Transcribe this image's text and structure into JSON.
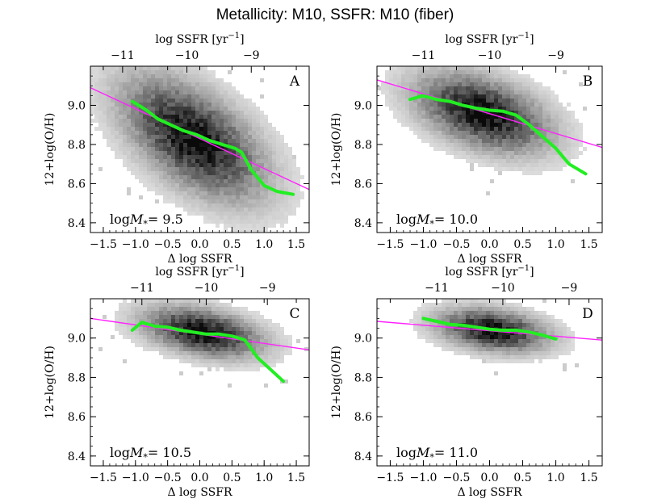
{
  "title": "Metallicity: M10,   SSFR: M10 (fiber)",
  "chart_data": [
    {
      "type": "heatmap",
      "panel": "A",
      "mass_label_prefix": "logM",
      "mass_label_sub": "*",
      "mass_label_value": "= 9.5",
      "xlabel": "Δ log SSFR",
      "ylabel": "12+log(O/H)",
      "top_xlabel": "log SSFR [yr",
      "top_xlabel_sup": "−1",
      "top_xlabel_end": "]",
      "xlim": [
        -1.7,
        1.7
      ],
      "ylim": [
        8.35,
        9.2
      ],
      "xticks": [
        -1.5,
        -1.0,
        -0.5,
        0.0,
        0.5,
        1.0,
        1.5
      ],
      "xtick_labels": [
        "−1.5",
        "−1.0",
        "−0.5",
        "0.0",
        "0.5",
        "1.0",
        "1.5"
      ],
      "yticks": [
        8.4,
        8.6,
        8.8,
        9.0
      ],
      "ytick_labels": [
        "8.4",
        "8.6",
        "8.8",
        "9.0"
      ],
      "top_ticks_delta": [
        -1.2,
        -0.2,
        0.8
      ],
      "top_tick_labels": [
        "−11",
        "−10",
        "−9"
      ],
      "density": {
        "cx": -0.1,
        "cy": 8.83,
        "sx": 0.6,
        "sy": 0.17,
        "rho": -0.55
      },
      "fit_line": {
        "x": [
          -1.7,
          1.7
        ],
        "y": [
          9.09,
          8.57
        ]
      },
      "median_line": {
        "x": [
          -1.05,
          -0.85,
          -0.65,
          -0.45,
          -0.25,
          -0.05,
          0.15,
          0.35,
          0.55,
          0.65,
          0.8,
          1.0,
          1.2,
          1.45
        ],
        "y": [
          9.02,
          8.98,
          8.93,
          8.9,
          8.87,
          8.85,
          8.82,
          8.8,
          8.78,
          8.76,
          8.67,
          8.59,
          8.56,
          8.545
        ]
      }
    },
    {
      "type": "heatmap",
      "panel": "B",
      "mass_label_prefix": "logM",
      "mass_label_sub": "*",
      "mass_label_value": "= 10.0",
      "xlabel": "Δ log SSFR",
      "ylabel": "12+log(O/H)",
      "top_xlabel": "log SSFR [yr",
      "top_xlabel_sup": "−1",
      "top_xlabel_end": "]",
      "xlim": [
        -1.7,
        1.7
      ],
      "ylim": [
        8.35,
        9.2
      ],
      "xticks": [
        -1.5,
        -1.0,
        -0.5,
        0.0,
        0.5,
        1.0,
        1.5
      ],
      "xtick_labels": [
        "−1.5",
        "−1.0",
        "−0.5",
        "0.0",
        "0.5",
        "1.0",
        "1.5"
      ],
      "yticks": [
        8.4,
        8.6,
        8.8,
        9.0
      ],
      "ytick_labels": [
        "8.4",
        "8.6",
        "8.8",
        "9.0"
      ],
      "top_ticks_delta": [
        -1.0,
        0.0,
        1.0
      ],
      "top_tick_labels": [
        "−11",
        "−10",
        "−9"
      ],
      "density": {
        "cx": -0.1,
        "cy": 8.96,
        "sx": 0.55,
        "sy": 0.11,
        "rho": -0.45
      },
      "fit_line": {
        "x": [
          -1.7,
          1.7
        ],
        "y": [
          9.13,
          8.785
        ]
      },
      "median_line": {
        "x": [
          -1.2,
          -1.0,
          -0.8,
          -0.6,
          -0.4,
          -0.2,
          0.0,
          0.2,
          0.4,
          0.6,
          0.8,
          1.0,
          1.2,
          1.45
        ],
        "y": [
          9.03,
          9.05,
          9.03,
          9.02,
          9.0,
          8.985,
          8.975,
          8.97,
          8.95,
          8.9,
          8.84,
          8.78,
          8.7,
          8.65
        ]
      }
    },
    {
      "type": "heatmap",
      "panel": "C",
      "mass_label_prefix": "logM",
      "mass_label_sub": "*",
      "mass_label_value": "= 10.5",
      "xlabel": "Δ log SSFR",
      "ylabel": "12+log(O/H)",
      "top_xlabel": "log SSFR [yr",
      "top_xlabel_sup": "−1",
      "top_xlabel_end": "]",
      "xlim": [
        -1.7,
        1.7
      ],
      "ylim": [
        8.35,
        9.2
      ],
      "xticks": [
        -1.5,
        -1.0,
        -0.5,
        0.0,
        0.5,
        1.0,
        1.5
      ],
      "xtick_labels": [
        "−1.5",
        "−1.0",
        "−0.5",
        "0.0",
        "0.5",
        "1.0",
        "1.5"
      ],
      "yticks": [
        8.4,
        8.6,
        8.8,
        9.0
      ],
      "ytick_labels": [
        "8.4",
        "8.6",
        "8.8",
        "9.0"
      ],
      "top_ticks_delta": [
        -0.9,
        0.1,
        1.05
      ],
      "top_tick_labels": [
        "−11",
        "−10",
        "−9"
      ],
      "density": {
        "cx": 0.05,
        "cy": 9.03,
        "sx": 0.5,
        "sy": 0.07,
        "rho": -0.4
      },
      "fit_line": {
        "x": [
          -1.7,
          1.7
        ],
        "y": [
          9.1,
          8.94
        ]
      },
      "median_line": {
        "x": [
          -1.05,
          -0.9,
          -0.7,
          -0.5,
          -0.3,
          -0.1,
          0.1,
          0.3,
          0.5,
          0.7,
          0.9,
          1.1,
          1.3
        ],
        "y": [
          9.04,
          9.08,
          9.06,
          9.055,
          9.04,
          9.03,
          9.02,
          9.02,
          9.01,
          8.99,
          8.9,
          8.84,
          8.78
        ]
      }
    },
    {
      "type": "heatmap",
      "panel": "D",
      "mass_label_prefix": "logM",
      "mass_label_sub": "*",
      "mass_label_value": "= 11.0",
      "xlabel": "Δ log SSFR",
      "ylabel": "12+log(O/H)",
      "top_xlabel": "log SSFR [yr",
      "top_xlabel_sup": "−1",
      "top_xlabel_end": "]",
      "xlim": [
        -1.7,
        1.7
      ],
      "ylim": [
        8.35,
        9.2
      ],
      "xticks": [
        -1.5,
        -1.0,
        -0.5,
        0.0,
        0.5,
        1.0,
        1.5
      ],
      "xtick_labels": [
        "−1.5",
        "−1.0",
        "−0.5",
        "0.0",
        "0.5",
        "1.0",
        "1.5"
      ],
      "yticks": [
        8.4,
        8.6,
        8.8,
        9.0
      ],
      "ytick_labels": [
        "8.4",
        "8.6",
        "8.8",
        "9.0"
      ],
      "top_ticks_delta": [
        -0.8,
        0.2,
        1.2
      ],
      "top_tick_labels": [
        "−11",
        "−10",
        "−9"
      ],
      "density": {
        "cx": 0.05,
        "cy": 9.04,
        "sx": 0.45,
        "sy": 0.06,
        "rho": -0.3
      },
      "fit_line": {
        "x": [
          -1.7,
          1.7
        ],
        "y": [
          9.085,
          8.99
        ]
      },
      "median_line": {
        "x": [
          -1.0,
          -0.8,
          -0.6,
          -0.4,
          -0.2,
          0.0,
          0.2,
          0.4,
          0.6,
          0.8,
          1.0
        ],
        "y": [
          9.1,
          9.085,
          9.07,
          9.065,
          9.055,
          9.045,
          9.04,
          9.04,
          9.03,
          9.015,
          8.995
        ]
      }
    }
  ],
  "colors": {
    "fit_line": "#ff22ff",
    "median_line": "#22ee22",
    "axes": "#000000"
  }
}
